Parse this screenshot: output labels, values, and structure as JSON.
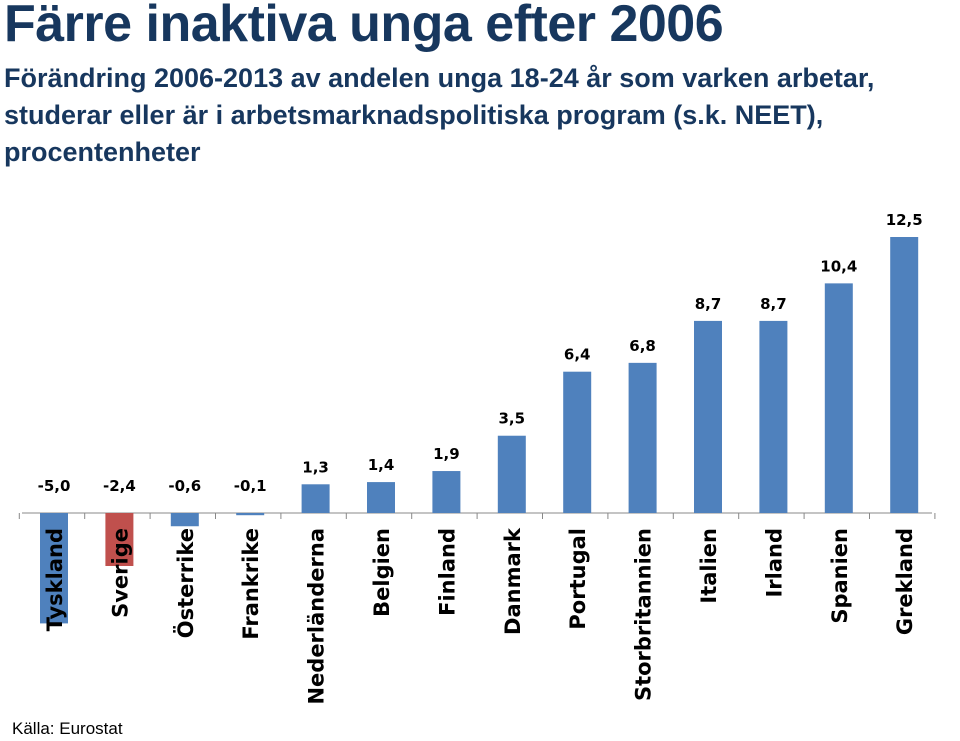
{
  "chart_data": {
    "type": "bar",
    "title": "Färre inaktiva unga efter 2006",
    "subtitle": "Förändring 2006-2013 av andelen unga 18-24 år som varken arbetar, studerar eller är i arbetsmarknadspolitiska program (s.k. NEET), procentenheter",
    "source": "Källa: Eurostat",
    "categories": [
      "Tyskland",
      "Sverige",
      "Österrike",
      "Frankrike",
      "Nederländerna",
      "Belgien",
      "Finland",
      "Danmark",
      "Portugal",
      "Storbritannien",
      "Italien",
      "Irland",
      "Spanien",
      "Grekland"
    ],
    "values": [
      -5.0,
      -2.4,
      -0.6,
      -0.1,
      1.3,
      1.4,
      1.9,
      3.5,
      6.4,
      6.8,
      8.7,
      8.7,
      10.4,
      12.5
    ],
    "value_labels": [
      "-5,0",
      "-2,4",
      "-0,6",
      "-0,1",
      "1,3",
      "1,4",
      "1,9",
      "3,5",
      "6,4",
      "6,8",
      "8,7",
      "8,7",
      "10,4",
      "12,5"
    ],
    "colors": {
      "default": "#4f81bd",
      "highlight": "#c0504d"
    },
    "highlight_category": "Sverige",
    "grid": false,
    "legend": "none"
  }
}
